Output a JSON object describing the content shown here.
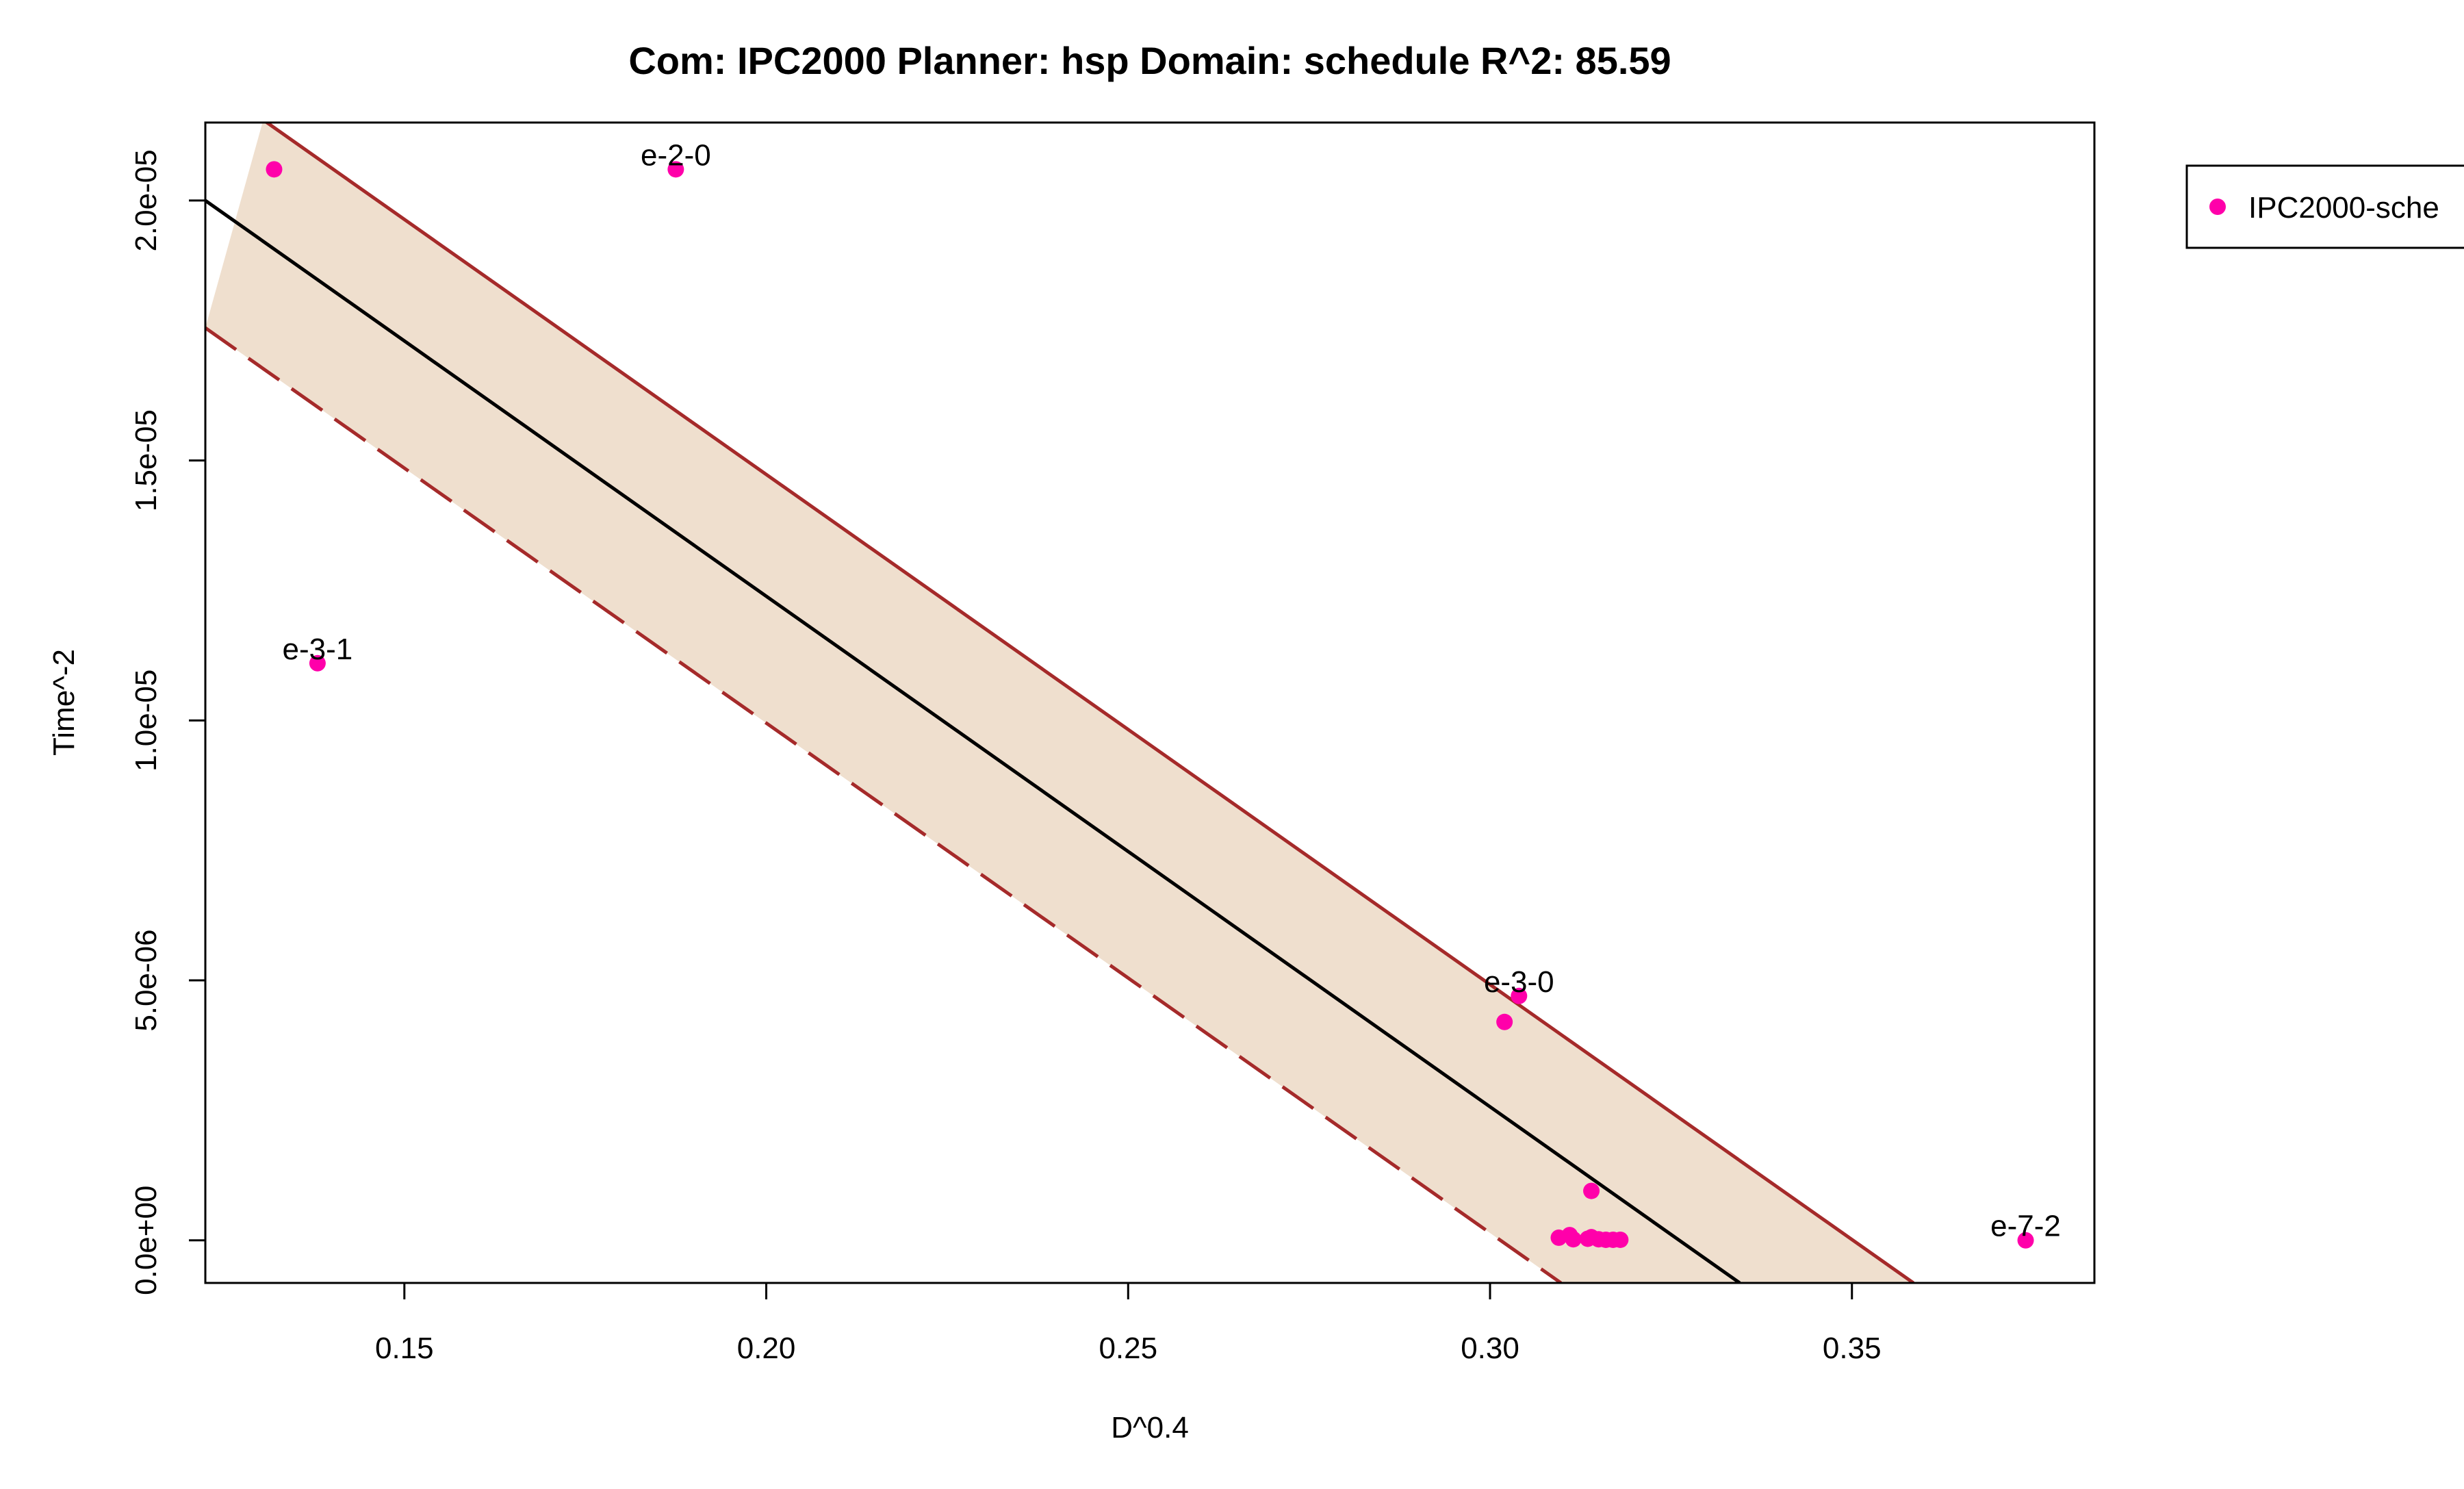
{
  "chart_data": {
    "type": "scatter",
    "title": "Com: IPC2000 Planner: hsp Domain: schedule R^2: 85.59",
    "xlabel": "D^0.4",
    "ylabel": "Time^-2",
    "xlim": [
      0.1225,
      0.3835
    ],
    "ylim": [
      -8.2e-07,
      2.15e-05
    ],
    "x_ticks": [
      0.15,
      0.2,
      0.25,
      0.3,
      0.35
    ],
    "x_tick_labels": [
      "0.15",
      "0.20",
      "0.25",
      "0.30",
      "0.35"
    ],
    "y_ticks": [
      0,
      5e-06,
      1e-05,
      1.5e-05,
      2e-05
    ],
    "y_tick_labels": [
      "0.0e+00",
      "5.0e-06",
      "1.0e-05",
      "1.5e-05",
      "2.0e-05"
    ],
    "grid": false,
    "legend": {
      "placement": "top-right, outside plot",
      "entries": [
        "IPC2000-sche"
      ]
    },
    "colors": {
      "points": "#ff00aa",
      "fit_line": "#000000",
      "band_fill": "#efdfce",
      "band_border": "#a52a2a"
    },
    "series": [
      {
        "name": "IPC2000-sche",
        "points": [
          {
            "x": 0.132,
            "y": 2.06e-05,
            "label": ""
          },
          {
            "x": 0.1875,
            "y": 2.06e-05,
            "label": "e-2-0"
          },
          {
            "x": 0.138,
            "y": 1.11e-05,
            "label": "e-3-1"
          },
          {
            "x": 0.304,
            "y": 4.7e-06,
            "label": "e-3-0"
          },
          {
            "x": 0.302,
            "y": 4.2e-06,
            "label": ""
          },
          {
            "x": 0.314,
            "y": 9.5e-07,
            "label": ""
          },
          {
            "x": 0.3095,
            "y": 5e-08,
            "label": ""
          },
          {
            "x": 0.311,
            "y": 1e-07,
            "label": ""
          },
          {
            "x": 0.3115,
            "y": 2e-08,
            "label": ""
          },
          {
            "x": 0.3135,
            "y": 3e-08,
            "label": ""
          },
          {
            "x": 0.314,
            "y": 6e-08,
            "label": ""
          },
          {
            "x": 0.315,
            "y": 2e-08,
            "label": ""
          },
          {
            "x": 0.316,
            "y": 1e-08,
            "label": ""
          },
          {
            "x": 0.317,
            "y": 1e-08,
            "label": ""
          },
          {
            "x": 0.318,
            "y": 1e-08,
            "label": ""
          },
          {
            "x": 0.374,
            "y": 0.0,
            "label": "e-7-2"
          }
        ]
      }
    ],
    "fit_line": {
      "x": [
        0.1225,
        0.3345
      ],
      "y": [
        2e-05,
        -8.2e-07
      ]
    },
    "band_upper": {
      "x": [
        0.1305,
        0.3585
      ],
      "y": [
        2.155e-05,
        -8.2e-07
      ]
    },
    "band_lower": {
      "x": [
        0.1225,
        0.3098
      ],
      "y": [
        1.755e-05,
        -8.2e-07
      ]
    }
  }
}
